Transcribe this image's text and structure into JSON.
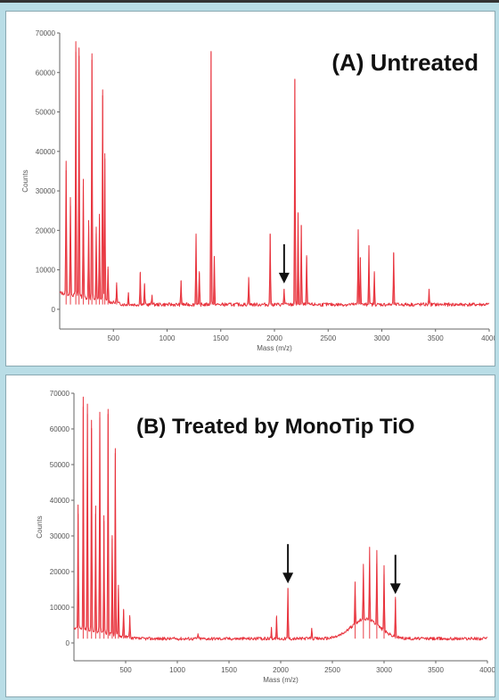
{
  "chart_data": [
    {
      "type": "line",
      "title": "(A) Untreated",
      "xlabel": "Mass (m/z)",
      "ylabel": "Counts",
      "xlim": [
        0,
        4000
      ],
      "ylim": [
        -5000,
        70000
      ],
      "xticks": [
        "500",
        "1000",
        "1500",
        "2000",
        "2500",
        "3000",
        "3500",
        "4000"
      ],
      "yticks": [
        "0",
        "10000",
        "20000",
        "30000",
        "40000",
        "50000",
        "60000",
        "70000"
      ],
      "baseline": 1200,
      "color": "#e8323c",
      "grid": false,
      "peaks": [
        {
          "x": 60,
          "y": 34000
        },
        {
          "x": 100,
          "y": 25000
        },
        {
          "x": 150,
          "y": 64000
        },
        {
          "x": 180,
          "y": 63000
        },
        {
          "x": 220,
          "y": 30000
        },
        {
          "x": 270,
          "y": 20000
        },
        {
          "x": 300,
          "y": 62000
        },
        {
          "x": 340,
          "y": 18000
        },
        {
          "x": 370,
          "y": 22000
        },
        {
          "x": 400,
          "y": 53000
        },
        {
          "x": 420,
          "y": 37000
        },
        {
          "x": 450,
          "y": 9000
        },
        {
          "x": 530,
          "y": 5000
        },
        {
          "x": 640,
          "y": 3000
        },
        {
          "x": 750,
          "y": 8000
        },
        {
          "x": 790,
          "y": 5000
        },
        {
          "x": 860,
          "y": 2500
        },
        {
          "x": 1130,
          "y": 6000
        },
        {
          "x": 1270,
          "y": 18000
        },
        {
          "x": 1300,
          "y": 8000
        },
        {
          "x": 1410,
          "y": 64000
        },
        {
          "x": 1440,
          "y": 12000
        },
        {
          "x": 1760,
          "y": 7000
        },
        {
          "x": 1960,
          "y": 18000
        },
        {
          "x": 2090,
          "y": 4000
        },
        {
          "x": 2190,
          "y": 57000
        },
        {
          "x": 2220,
          "y": 23000
        },
        {
          "x": 2250,
          "y": 20000
        },
        {
          "x": 2300,
          "y": 12000
        },
        {
          "x": 2780,
          "y": 19000
        },
        {
          "x": 2800,
          "y": 12000
        },
        {
          "x": 2880,
          "y": 15000
        },
        {
          "x": 2930,
          "y": 8000
        },
        {
          "x": 3110,
          "y": 13000
        },
        {
          "x": 3440,
          "y": 4000
        }
      ],
      "arrows": [
        2090
      ]
    },
    {
      "type": "line",
      "title": "(B) Treated by MonoTip TiO",
      "xlabel": "Mass (m/z)",
      "ylabel": "Counts",
      "xlim": [
        0,
        4000
      ],
      "ylim": [
        -5000,
        70000
      ],
      "xticks": [
        "500",
        "1000",
        "1500",
        "2000",
        "2500",
        "3000",
        "3500",
        "4000"
      ],
      "yticks": [
        "0",
        "10000",
        "20000",
        "30000",
        "40000",
        "50000",
        "60000",
        "70000"
      ],
      "baseline": 1200,
      "color": "#e8323c",
      "grid": false,
      "hump": {
        "center": 2820,
        "width": 190,
        "height": 5500
      },
      "peaks": [
        {
          "x": 40,
          "y": 35000
        },
        {
          "x": 90,
          "y": 65000
        },
        {
          "x": 130,
          "y": 63000
        },
        {
          "x": 170,
          "y": 59000
        },
        {
          "x": 210,
          "y": 35000
        },
        {
          "x": 250,
          "y": 62000
        },
        {
          "x": 290,
          "y": 33000
        },
        {
          "x": 330,
          "y": 63000
        },
        {
          "x": 370,
          "y": 28000
        },
        {
          "x": 400,
          "y": 52000
        },
        {
          "x": 430,
          "y": 14000
        },
        {
          "x": 480,
          "y": 8000
        },
        {
          "x": 540,
          "y": 6000
        },
        {
          "x": 1200,
          "y": 1500
        },
        {
          "x": 1910,
          "y": 3000
        },
        {
          "x": 1960,
          "y": 6000
        },
        {
          "x": 2070,
          "y": 14000
        },
        {
          "x": 2300,
          "y": 3000
        },
        {
          "x": 2720,
          "y": 12000
        },
        {
          "x": 2800,
          "y": 15000
        },
        {
          "x": 2860,
          "y": 20000
        },
        {
          "x": 2930,
          "y": 21000
        },
        {
          "x": 3000,
          "y": 18000
        },
        {
          "x": 3110,
          "y": 11000
        }
      ],
      "arrows": [
        2070,
        3110
      ]
    }
  ]
}
